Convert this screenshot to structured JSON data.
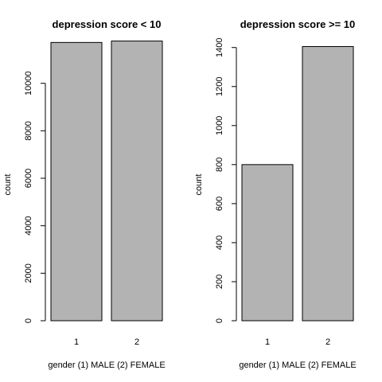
{
  "chart_data": [
    {
      "type": "bar",
      "title": "depression score < 10",
      "xlabel": "gender (1) MALE (2) FEMALE",
      "ylabel": "count",
      "categories": [
        "1",
        "2"
      ],
      "values": [
        11720,
        11780
      ],
      "ylim": [
        0,
        12000
      ],
      "yticks": [
        0,
        2000,
        4000,
        6000,
        8000,
        10000
      ],
      "bar_color": "#b3b3b3",
      "grid": false
    },
    {
      "type": "bar",
      "title": "depression score >= 10",
      "xlabel": "gender (1) MALE (2) FEMALE",
      "ylabel": "count",
      "categories": [
        "1",
        "2"
      ],
      "values": [
        800,
        1405
      ],
      "ylim": [
        0,
        1460
      ],
      "yticks": [
        0,
        200,
        400,
        600,
        800,
        1000,
        1200,
        1400
      ],
      "bar_color": "#b3b3b3",
      "grid": false
    }
  ]
}
